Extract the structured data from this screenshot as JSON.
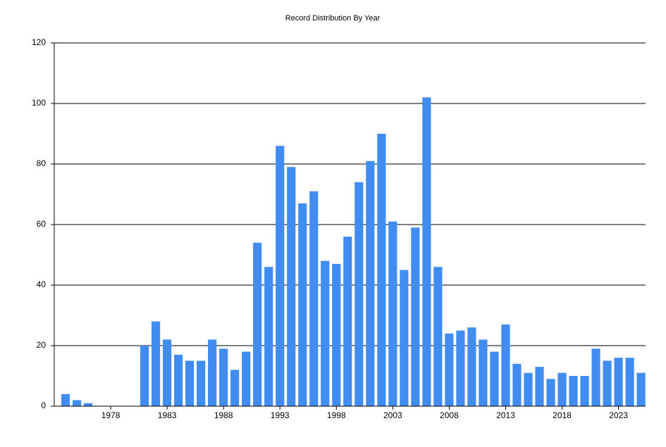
{
  "chart_data": {
    "type": "bar",
    "title": "Record Distribution By Year",
    "x": [
      1974,
      1975,
      1976,
      1977,
      1978,
      1979,
      1980,
      1981,
      1982,
      1983,
      1984,
      1985,
      1986,
      1987,
      1988,
      1989,
      1990,
      1991,
      1992,
      1993,
      1994,
      1995,
      1996,
      1997,
      1998,
      1999,
      2000,
      2001,
      2002,
      2003,
      2004,
      2005,
      2006,
      2007,
      2008,
      2009,
      2010,
      2011,
      2012,
      2013,
      2014,
      2015,
      2016,
      2017,
      2018,
      2019,
      2020,
      2021,
      2022,
      2023,
      2024,
      2025
    ],
    "values": [
      4,
      2,
      1,
      0,
      0,
      0,
      0,
      20,
      28,
      22,
      17,
      15,
      15,
      22,
      19,
      12,
      18,
      54,
      46,
      86,
      79,
      67,
      71,
      48,
      47,
      56,
      74,
      81,
      90,
      61,
      45,
      59,
      102,
      46,
      24,
      25,
      26,
      22,
      18,
      27,
      14,
      11,
      13,
      9,
      11,
      10,
      10,
      19,
      15,
      16,
      16,
      11
    ],
    "color": "#418cf0",
    "xlim": [
      1973,
      2025.4
    ],
    "xticks": [
      1978,
      1983,
      1988,
      1993,
      1998,
      2003,
      2008,
      2013,
      2018,
      2023
    ],
    "ylim": [
      0,
      120
    ],
    "yticks": [
      0,
      20,
      40,
      60,
      80,
      100,
      120
    ],
    "grid": true
  }
}
